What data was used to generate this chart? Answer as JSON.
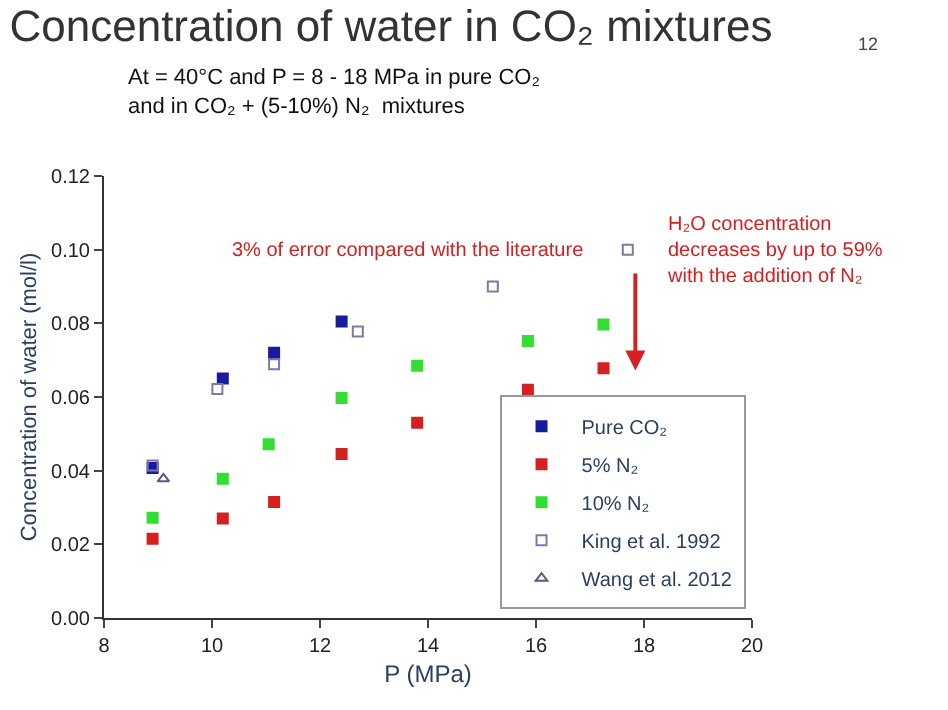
{
  "chart_data": {
    "type": "scatter",
    "title": "Concentration of water in CO₂ mixtures",
    "subtitle": "At = 40°C and P = 8 - 18 MPa in pure CO₂\nand in CO₂ + (5-10%) N₂  mixtures",
    "xlabel": "P (MPa)",
    "ylabel": "Concentration of water (mol/l)",
    "xlim": [
      8,
      20
    ],
    "xticks": [
      8,
      10,
      12,
      14,
      16,
      18,
      20
    ],
    "ylim": [
      0,
      0.12
    ],
    "yticks": [
      {
        "value": 0,
        "label": "0.00"
      },
      {
        "value": 0.02,
        "label": "0.02"
      },
      {
        "value": 0.04,
        "label": "0.04"
      },
      {
        "value": 0.06,
        "label": "0.06"
      },
      {
        "value": 0.08,
        "label": "0.08"
      },
      {
        "value": 0.1,
        "label": "0.10"
      },
      {
        "value": 0.12,
        "label": "0.12"
      }
    ],
    "legend": "bottom right",
    "annotations": [
      "12",
      "3% of error compared with the literature",
      "H₂O concentration\ndecreases by up to 59%\nwith the addition of N₂"
    ],
    "series": [
      {
        "name": "Pure CO₂",
        "color": "#1a1aa0",
        "marker": "square",
        "x": [
          8.9,
          10.2,
          11.15,
          12.4
        ],
        "values": [
          0.0407,
          0.065,
          0.072,
          0.0805
        ]
      },
      {
        "name": "5% N₂",
        "color": "#d42020",
        "marker": "square",
        "x": [
          8.9,
          10.2,
          11.15,
          12.4,
          13.8,
          15.85,
          17.25
        ],
        "values": [
          0.0215,
          0.027,
          0.0315,
          0.0445,
          0.053,
          0.062,
          0.0678
        ]
      },
      {
        "name": "10% N₂",
        "color": "#33dd33",
        "marker": "square",
        "x": [
          8.9,
          10.2,
          11.05,
          12.4,
          13.8,
          15.85,
          17.25
        ],
        "values": [
          0.0272,
          0.0378,
          0.0472,
          0.0597,
          0.0685,
          0.0752,
          0.0797
        ]
      },
      {
        "name": "King et al. 1992",
        "color": "#7a7aa8",
        "marker": "square-open",
        "x": [
          8.9,
          10.1,
          11.15,
          12.7,
          15.2,
          17.7
        ],
        "values": [
          0.0414,
          0.0622,
          0.0689,
          0.0778,
          0.09,
          0.1
        ]
      },
      {
        "name": "Wang et al. 2012",
        "color": "#5a5a80",
        "marker": "triangle-open",
        "x": [
          9.1
        ],
        "values": [
          0.0378
        ]
      }
    ]
  }
}
